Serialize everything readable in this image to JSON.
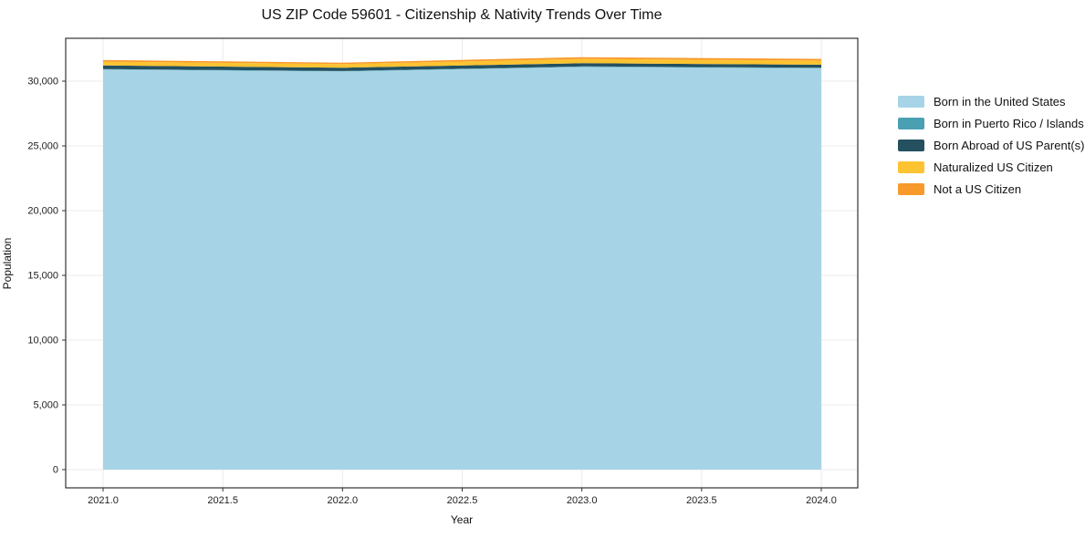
{
  "chart_data": {
    "type": "area",
    "stacked": true,
    "title": "US ZIP Code 59601 - Citizenship & Nativity Trends Over Time",
    "xlabel": "Year",
    "ylabel": "Population",
    "x": [
      2021,
      2022,
      2023,
      2024
    ],
    "xticks": [
      2021.0,
      2021.5,
      2022.0,
      2022.5,
      2023.0,
      2023.5,
      2024.0
    ],
    "yticks": [
      0,
      5000,
      10000,
      15000,
      20000,
      25000,
      30000
    ],
    "xlim": [
      2021,
      2024
    ],
    "ylim": [
      0,
      33300
    ],
    "grid": true,
    "legend_position": "right",
    "series": [
      {
        "name": "Born in the United States",
        "color": "#a6d4e6",
        "values": [
          30900,
          30750,
          31100,
          31000
        ]
      },
      {
        "name": "Born in Puerto Rico / Islands",
        "color": "#4b9fb3",
        "values": [
          30,
          30,
          40,
          35
        ]
      },
      {
        "name": "Born Abroad of US Parent(s)",
        "color": "#24505f",
        "values": [
          280,
          260,
          250,
          230
        ]
      },
      {
        "name": "Naturalized US Citizen",
        "color": "#fdc330",
        "values": [
          300,
          280,
          330,
          330
        ]
      },
      {
        "name": "Not a US Citizen",
        "color": "#f8992b",
        "values": [
          120,
          110,
          130,
          120
        ]
      }
    ],
    "style": {
      "grid_color": "#ebebeb",
      "spine_color": "#333333",
      "tick_label_color": "#222222",
      "plot_bg": "#ffffff"
    }
  }
}
